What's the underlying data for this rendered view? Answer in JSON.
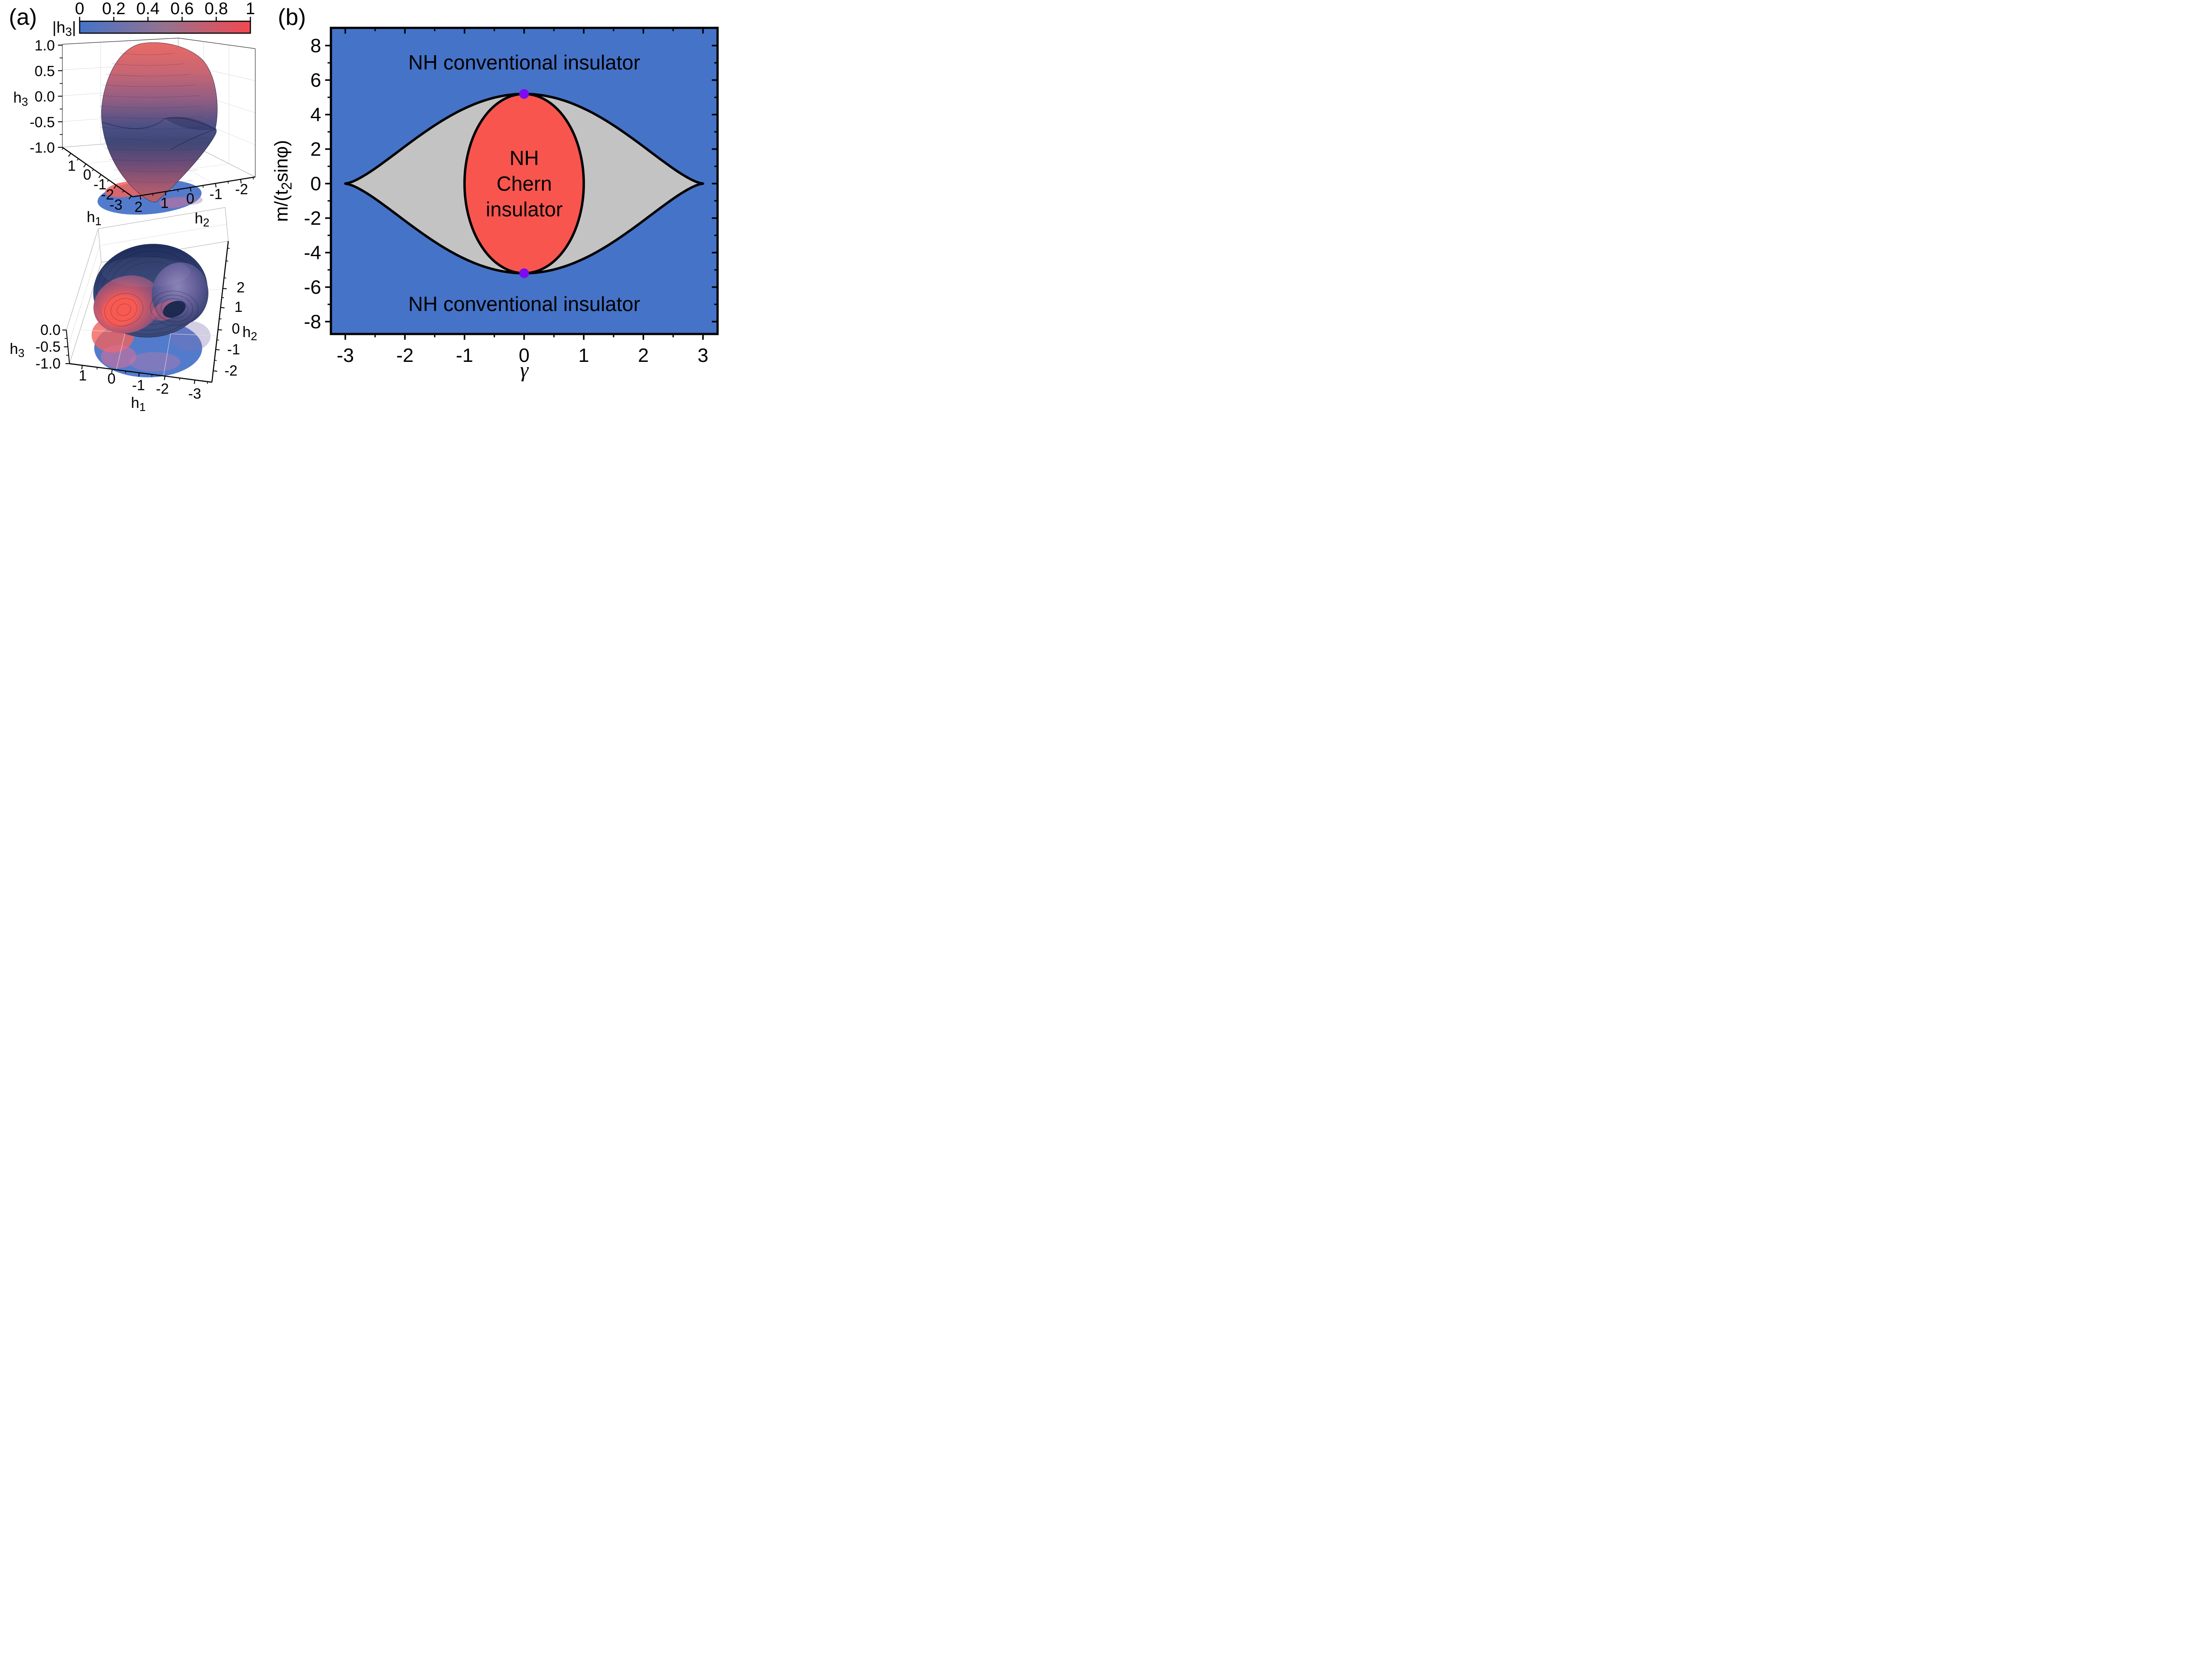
{
  "figure": {
    "panel_a": {
      "label": "(a)",
      "colorbar": {
        "label_pre": "|h",
        "label_sub": "3",
        "label_post": "|",
        "tick_labels": [
          "0",
          "0.2",
          "0.4",
          "0.6",
          "0.8",
          "1"
        ],
        "color_start": "#4573C8",
        "color_mid": "#95728F",
        "color_end": "#F4484F"
      },
      "plot_top": {
        "z_axis": {
          "label_base": "h",
          "label_sub": "3",
          "tick_labels": [
            "1.0",
            "0.5",
            "0.0",
            "-0.5",
            "-1.0"
          ]
        },
        "x_axis": {
          "label_base": "h",
          "label_sub": "1",
          "tick_labels": [
            "1",
            "0",
            "-1",
            "-2",
            "-3"
          ]
        },
        "y_axis": {
          "label_base": "h",
          "label_sub": "2",
          "tick_labels": [
            "2",
            "1",
            "0",
            "-1",
            "-2"
          ]
        }
      },
      "plot_bottom": {
        "z_axis": {
          "label_base": "h",
          "label_sub": "3",
          "tick_labels": [
            "0.0",
            "-0.5",
            "-1.0"
          ]
        },
        "x_axis": {
          "label_base": "h",
          "label_sub": "1",
          "tick_labels": [
            "1",
            "0",
            "-1",
            "-2",
            "-3"
          ]
        },
        "y_axis": {
          "label_base": "h",
          "label_sub": "2",
          "tick_labels": [
            "-2",
            "-1",
            "0",
            "1",
            "2"
          ]
        }
      }
    },
    "panel_b": {
      "label": "(b)",
      "xlabel": "γ",
      "ylabel_pre": "m/(t",
      "ylabel_sub": "2",
      "ylabel_post": "sinφ)",
      "x_tick_labels": [
        "-3",
        "-2",
        "-1",
        "0",
        "1",
        "2",
        "3"
      ],
      "y_tick_labels": [
        "8",
        "6",
        "4",
        "2",
        "0",
        "-2",
        "-4",
        "-6",
        "-8"
      ],
      "region_conventional": "NH conventional insulator",
      "region_chern_lines": [
        "NH",
        "Chern",
        "insulator"
      ],
      "colors": {
        "conventional": "#4573C8",
        "gapless": "#C3C3C3",
        "chern": "#F8554F",
        "point": "#7C0BF1",
        "line": "#000000"
      }
    }
  },
  "chart_data": [
    {
      "panel": "a",
      "type": "heatmap",
      "title": "",
      "description": "Two 3D surface plots of the closed (h1,h2,h3) spectral surface, colored by |h3| from 0 (blue) to 1 (red), each with its projection shadow on the h1-h2 floor plane",
      "colorbar": {
        "label": "|h3|",
        "min": 0,
        "max": 1,
        "ticks": [
          0,
          0.2,
          0.4,
          0.6,
          0.8,
          1
        ],
        "colors": [
          "#4573C8",
          "#95728F",
          "#F4484F"
        ]
      },
      "subplots": [
        {
          "view": "side",
          "axes": {
            "h1": {
              "ticks": [
                1,
                0,
                -1,
                -2,
                -3
              ]
            },
            "h2": {
              "ticks": [
                2,
                1,
                0,
                -1,
                -2
              ]
            },
            "h3": {
              "ticks": [
                1.0,
                0.5,
                0.0,
                -0.5,
                -1.0
              ]
            }
          }
        },
        {
          "view": "top",
          "axes": {
            "h1": {
              "ticks": [
                1,
                0,
                -1,
                -2,
                -3
              ]
            },
            "h2": {
              "ticks": [
                -2,
                -1,
                0,
                1,
                2
              ]
            },
            "h3": {
              "ticks": [
                0.0,
                -0.5,
                -1.0
              ]
            }
          }
        }
      ]
    },
    {
      "panel": "b",
      "type": "area",
      "title": "",
      "xlabel": "γ",
      "ylabel": "m/(t2sinφ)",
      "xlim": [
        -3.25,
        3.25
      ],
      "ylim": [
        -8.72,
        9.03
      ],
      "x_major_ticks": [
        -3,
        -2,
        -1,
        0,
        1,
        2,
        3
      ],
      "x_minor_ticks": [
        -2.5,
        -1.5,
        -0.5,
        0.5,
        1.5,
        2.5
      ],
      "y_major_ticks": [
        -8,
        -6,
        -4,
        -2,
        0,
        2,
        4,
        6,
        8
      ],
      "y_minor_ticks": [
        -7,
        -5,
        -3,
        -1,
        1,
        3,
        5,
        7
      ],
      "grid": false,
      "regions": [
        {
          "label": "NH conventional insulator",
          "color": "#4573C8",
          "where": "outside the outer boundary (large |m|)"
        },
        {
          "label": "",
          "color": "#C3C3C3",
          "where": "between outer boundary and Chern ellipse (unlabeled gray region)"
        },
        {
          "label": "NH Chern insulator",
          "color": "#F8554F",
          "where": "inside central ellipse"
        }
      ],
      "outer_boundary": {
        "formula": "m = ±m0·(1−(γ/γtip)²)^(3/2)",
        "m0": 5.196,
        "gamma_tip": 3,
        "points_top": [
          [
            -3,
            0
          ],
          [
            -2.5,
            0.88
          ],
          [
            -2,
            2.15
          ],
          [
            -1.5,
            3.38
          ],
          [
            -1,
            4.35
          ],
          [
            -0.5,
            4.98
          ],
          [
            0,
            5.196
          ],
          [
            0.5,
            4.98
          ],
          [
            1,
            4.35
          ],
          [
            1.5,
            3.38
          ],
          [
            2,
            2.15
          ],
          [
            2.5,
            0.88
          ],
          [
            3,
            0
          ]
        ]
      },
      "chern_boundary": {
        "shape": "ellipse",
        "center": [
          0,
          0
        ],
        "rx": 1.0,
        "ry": 5.196
      },
      "special_points": [
        [
          0,
          5.196
        ],
        [
          0,
          -5.196
        ]
      ],
      "annotations": [
        {
          "text": "NH conventional insulator",
          "x": 0,
          "y": 7
        },
        {
          "text": "NH Chern insulator",
          "x": 0,
          "y": 0
        },
        {
          "text": "NH conventional insulator",
          "x": 0,
          "y": -7
        }
      ]
    }
  ]
}
